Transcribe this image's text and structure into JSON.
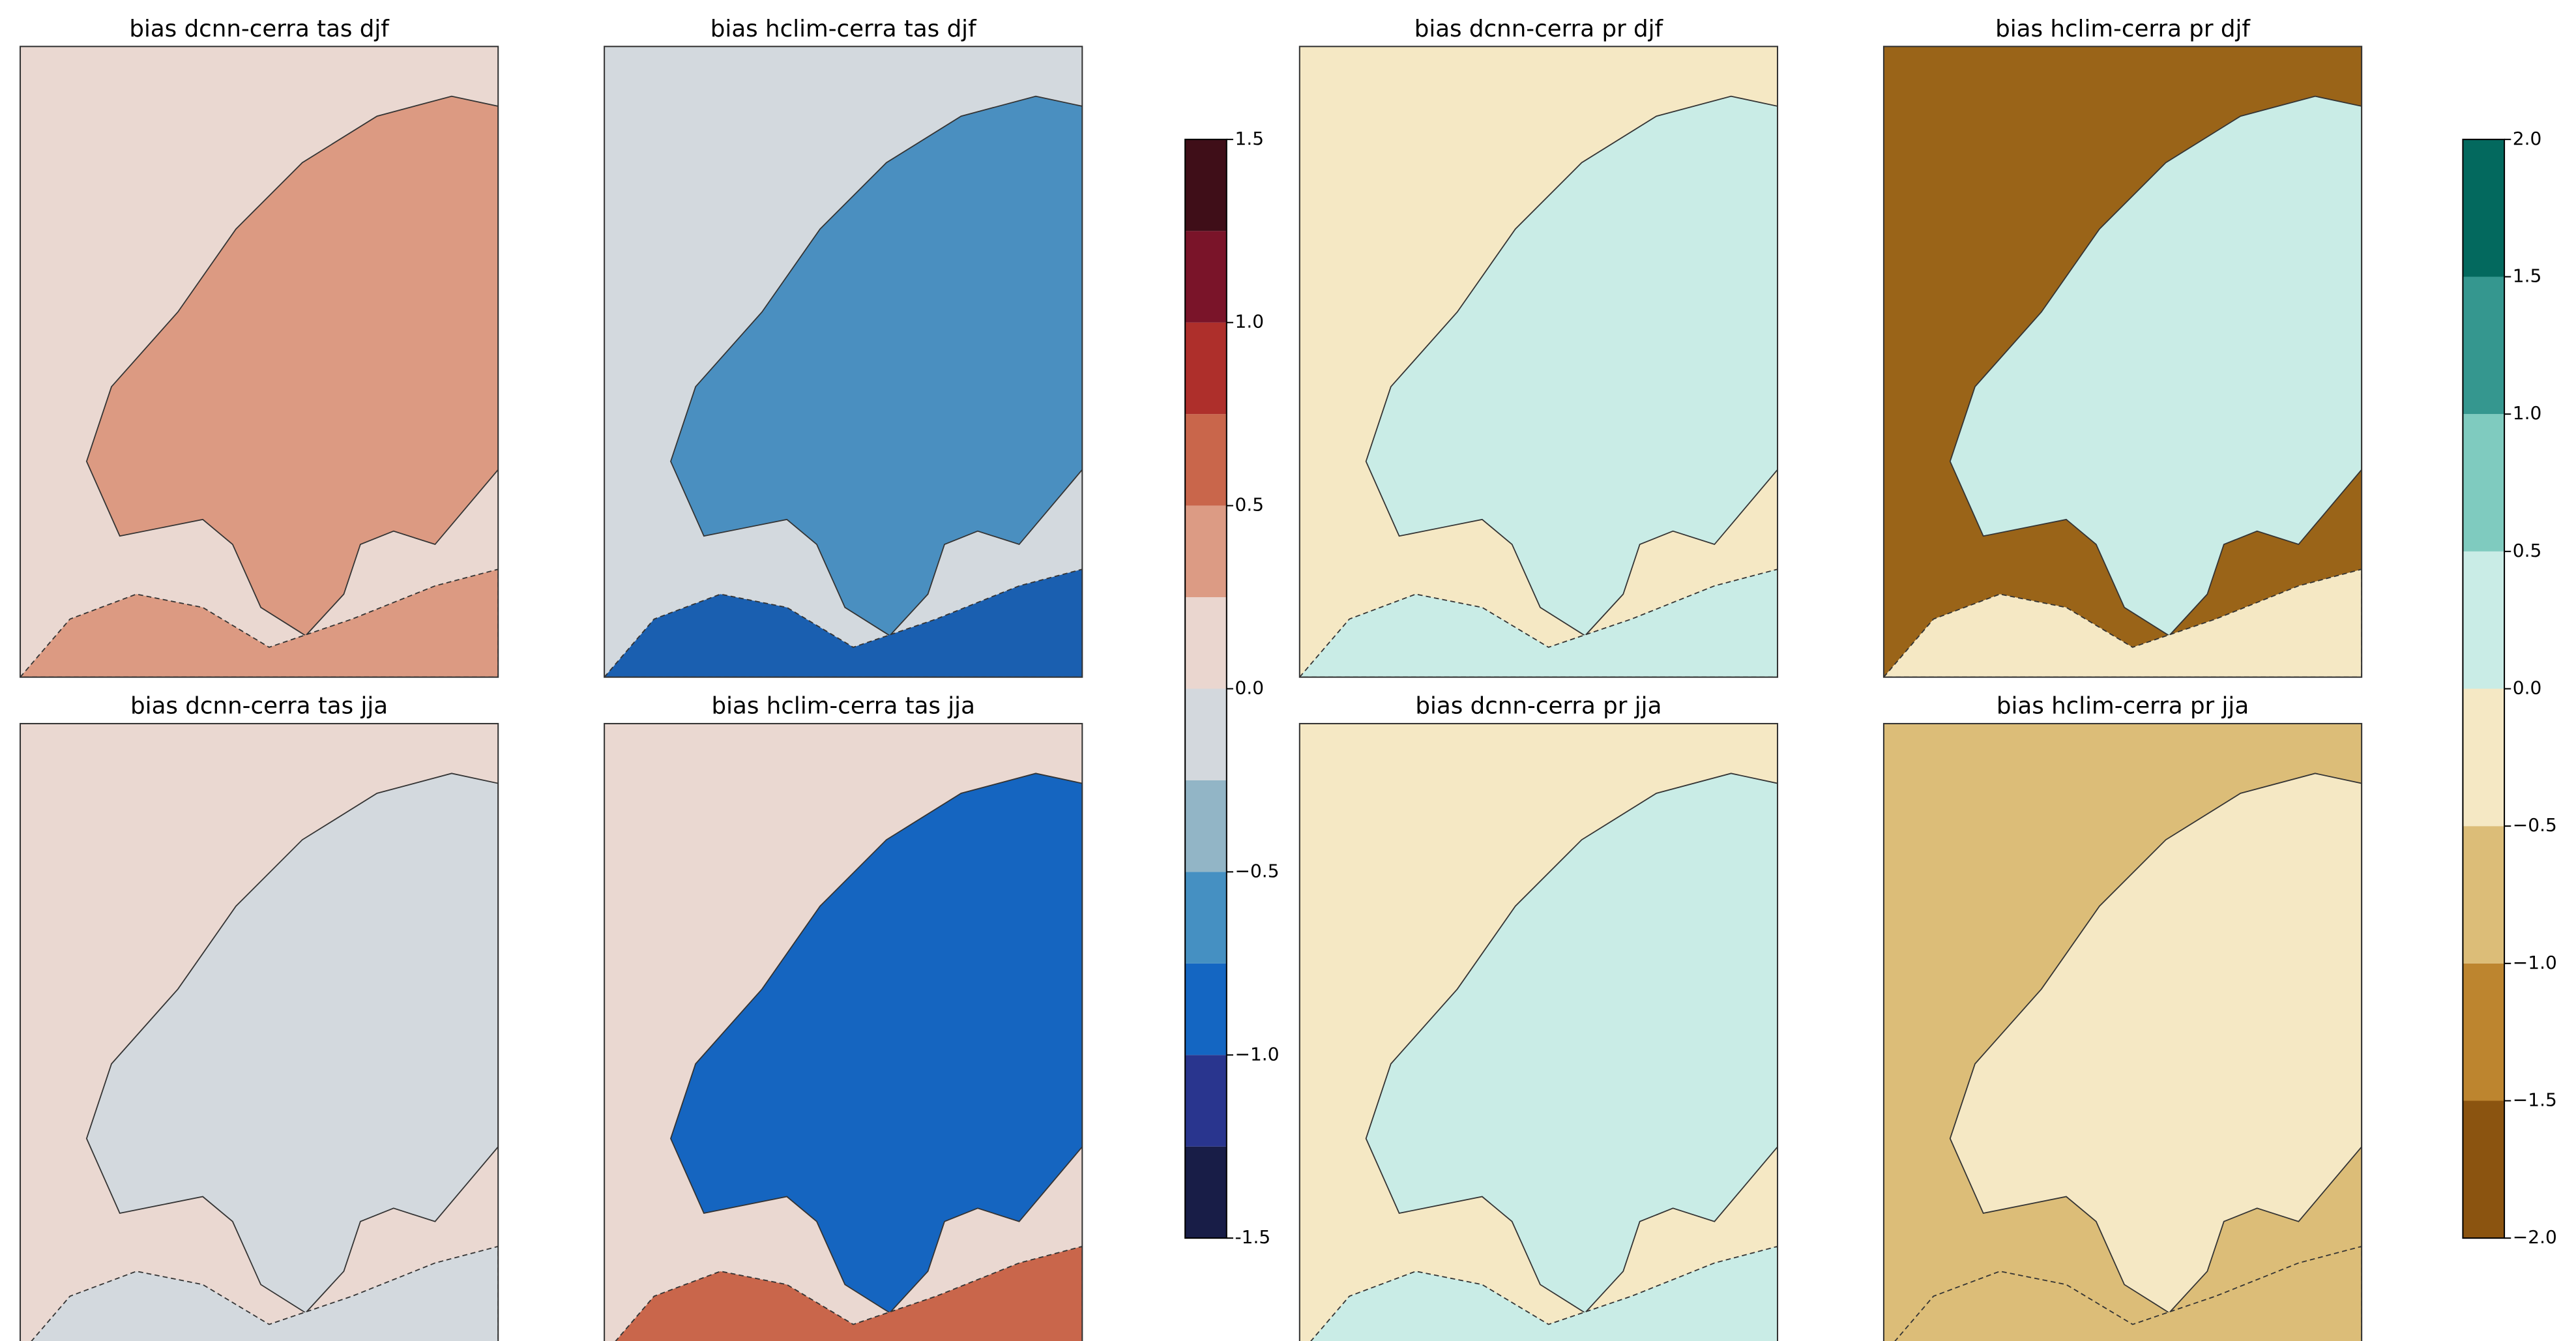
{
  "panels": [
    {
      "title": "bias dcnn-cerra tas djf"
    },
    {
      "title": "bias hclim-cerra tas djf"
    },
    {
      "title": "bias dcnn-cerra pr djf"
    },
    {
      "title": "bias hclim-cerra pr djf"
    },
    {
      "title": "bias dcnn-cerra tas jja"
    },
    {
      "title": "bias hclim-cerra tas jja"
    },
    {
      "title": "bias dcnn-cerra pr jja"
    },
    {
      "title": "bias hclim-cerra pr jja"
    }
  ],
  "colorbars": [
    {
      "lim": [
        -1.5,
        1.5
      ],
      "levels": [
        -1.5,
        -1.25,
        -1,
        -0.75,
        -0.5,
        -0.25,
        0,
        0.25,
        0.5,
        0.75,
        1,
        1.25,
        1.5
      ],
      "colors": [
        "#181d47",
        "#29358e",
        "#1466c2",
        "#4590c2",
        "#92b5c6",
        "#d3d8dd",
        "#ead6cf",
        "#dc9b84",
        "#c9664b",
        "#ae2f2b",
        "#7a1429",
        "#3f0e18"
      ],
      "ticks": [
        -1.5,
        {
          "value": -1,
          "label": "−1.0"
        },
        {
          "value": -0.5,
          "label": "−0.5"
        },
        {
          "value": 0,
          "label": "0.0"
        },
        0.5,
        {
          "value": 1,
          "label": "1.0"
        },
        1.5
      ]
    },
    {
      "lim": [
        -2,
        2
      ],
      "levels": [
        -2,
        -1.5,
        -1,
        -0.5,
        0,
        0.5,
        1,
        1.5,
        2
      ],
      "colors": [
        "#8b5410",
        "#bd852f",
        "#dcbd78",
        "#f5e8c4",
        "#c9ece6",
        "#7fcbbf",
        "#35978f",
        "#03695e"
      ],
      "ticks": [
        {
          "value": -2,
          "label": "−2.0"
        },
        {
          "value": -1.5,
          "label": "−1.5"
        },
        {
          "value": -1,
          "label": "−1.0"
        },
        {
          "value": -0.5,
          "label": "−0.5"
        },
        {
          "value": 0,
          "label": "0.0"
        },
        0.5,
        {
          "value": 1,
          "label": "1.0"
        },
        1.5,
        {
          "value": 2,
          "label": "2.0"
        }
      ]
    }
  ]
}
